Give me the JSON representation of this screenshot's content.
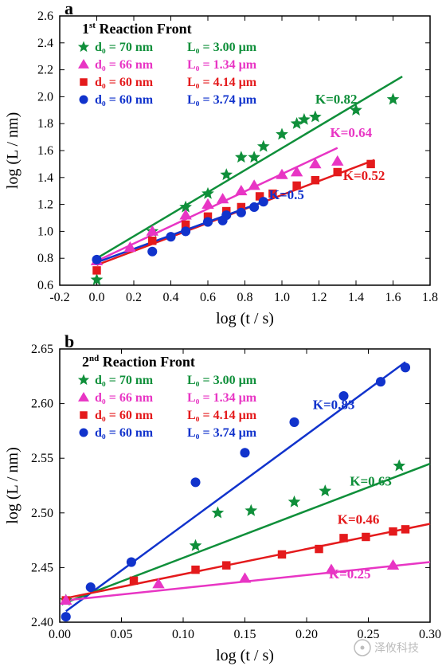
{
  "panel_a": {
    "letter": "a",
    "subtitle_prefix": "1",
    "subtitle_sup": "st",
    "subtitle_rest": " Reaction Front",
    "xlabel": "log (t / s)",
    "ylabel": "log (L / nm)",
    "xlim": [
      -0.2,
      1.8
    ],
    "ylim": [
      0.6,
      2.6
    ],
    "xticks": [
      -0.2,
      0.0,
      0.2,
      0.4,
      0.6,
      0.8,
      1.0,
      1.2,
      1.4,
      1.6,
      1.8
    ],
    "yticks": [
      0.6,
      0.8,
      1.0,
      1.2,
      1.4,
      1.6,
      1.8,
      2.0,
      2.2,
      2.4,
      2.6
    ],
    "legend": [
      {
        "marker": "star",
        "color": "#0f8f3a",
        "d0": "d₀ = 70 nm",
        "L0": "L₀ = 3.00 µm"
      },
      {
        "marker": "triangle",
        "color": "#e835c4",
        "d0": "d₀ = 66 nm",
        "L0": "L₀ = 1.34 µm"
      },
      {
        "marker": "square",
        "color": "#e41a1c",
        "d0": "d₀ = 60 nm",
        "L0": "L₀ = 4.14 µm"
      },
      {
        "marker": "circle",
        "color": "#1133cc",
        "d0": "d₀ = 60 nm",
        "L0": "L₀ = 3.74 µm"
      }
    ],
    "series": [
      {
        "name": "green",
        "color": "#0f8f3a",
        "marker": "star",
        "K": "K=0.82",
        "kpos": [
          1.18,
          1.95
        ],
        "points": [
          [
            0.0,
            0.64
          ],
          [
            0.3,
            1.0
          ],
          [
            0.48,
            1.18
          ],
          [
            0.6,
            1.28
          ],
          [
            0.7,
            1.42
          ],
          [
            0.78,
            1.55
          ],
          [
            0.85,
            1.55
          ],
          [
            0.9,
            1.63
          ],
          [
            1.0,
            1.72
          ],
          [
            1.08,
            1.8
          ],
          [
            1.12,
            1.83
          ],
          [
            1.18,
            1.85
          ],
          [
            1.4,
            1.9
          ],
          [
            1.6,
            1.98
          ]
        ],
        "fit": {
          "x1": 0.0,
          "y1": 0.8,
          "x2": 1.65,
          "y2": 2.15
        }
      },
      {
        "name": "magenta",
        "color": "#e835c4",
        "marker": "triangle",
        "K": "K=0.64",
        "kpos": [
          1.26,
          1.7
        ],
        "points": [
          [
            0.0,
            0.78
          ],
          [
            0.18,
            0.88
          ],
          [
            0.3,
            1.0
          ],
          [
            0.48,
            1.12
          ],
          [
            0.6,
            1.2
          ],
          [
            0.68,
            1.24
          ],
          [
            0.78,
            1.3
          ],
          [
            0.85,
            1.34
          ],
          [
            1.0,
            1.42
          ],
          [
            1.08,
            1.44
          ],
          [
            1.18,
            1.5
          ],
          [
            1.3,
            1.52
          ]
        ],
        "fit": {
          "x1": 0.0,
          "y1": 0.78,
          "x2": 1.3,
          "y2": 1.62
        }
      },
      {
        "name": "red",
        "color": "#e41a1c",
        "marker": "square",
        "K": "K=0.52",
        "kpos": [
          1.33,
          1.38
        ],
        "points": [
          [
            0.0,
            0.71
          ],
          [
            0.3,
            0.93
          ],
          [
            0.48,
            1.05
          ],
          [
            0.6,
            1.11
          ],
          [
            0.7,
            1.15
          ],
          [
            0.78,
            1.18
          ],
          [
            0.88,
            1.26
          ],
          [
            0.95,
            1.28
          ],
          [
            1.08,
            1.34
          ],
          [
            1.18,
            1.38
          ],
          [
            1.3,
            1.44
          ],
          [
            1.48,
            1.5
          ]
        ],
        "fit": {
          "x1": 0.0,
          "y1": 0.75,
          "x2": 1.5,
          "y2": 1.53
        }
      },
      {
        "name": "blue",
        "color": "#1133cc",
        "marker": "circle",
        "K": "K=0.5",
        "kpos": [
          0.93,
          1.24
        ],
        "points": [
          [
            0.0,
            0.79
          ],
          [
            0.3,
            0.85
          ],
          [
            0.4,
            0.96
          ],
          [
            0.48,
            1.0
          ],
          [
            0.6,
            1.07
          ],
          [
            0.68,
            1.08
          ],
          [
            0.7,
            1.12
          ],
          [
            0.78,
            1.14
          ],
          [
            0.85,
            1.18
          ],
          [
            0.9,
            1.22
          ]
        ],
        "fit": {
          "x1": 0.0,
          "y1": 0.77,
          "x2": 0.92,
          "y2": 1.23
        }
      }
    ]
  },
  "panel_b": {
    "letter": "b",
    "subtitle_prefix": "2",
    "subtitle_sup": "nd",
    "subtitle_rest": " Reaction Front",
    "xlabel": "log (t / s)",
    "ylabel": "log (L / nm)",
    "xlim": [
      0.0,
      0.3
    ],
    "ylim": [
      2.4,
      2.65
    ],
    "xticks": [
      0.0,
      0.05,
      0.1,
      0.15,
      0.2,
      0.25,
      0.3
    ],
    "yticks": [
      2.4,
      2.45,
      2.5,
      2.55,
      2.6,
      2.65
    ],
    "legend": [
      {
        "marker": "star",
        "color": "#0f8f3a",
        "d0": "d₀ = 70 nm",
        "L0": "L₀ = 3.00 µm"
      },
      {
        "marker": "triangle",
        "color": "#e835c4",
        "d0": "d₀ = 66 nm",
        "L0": "L₀ = 1.34 µm"
      },
      {
        "marker": "square",
        "color": "#e41a1c",
        "d0": "d₀ = 60 nm",
        "L0": "L₀ = 4.14 µm"
      },
      {
        "marker": "circle",
        "color": "#1133cc",
        "d0": "d₀ = 60 nm",
        "L0": "L₀ = 3.74 µm"
      }
    ],
    "series": [
      {
        "name": "blue",
        "color": "#1133cc",
        "marker": "circle",
        "K": "K=0.83",
        "kpos": [
          0.205,
          2.595
        ],
        "points": [
          [
            0.005,
            2.405
          ],
          [
            0.025,
            2.432
          ],
          [
            0.058,
            2.455
          ],
          [
            0.11,
            2.528
          ],
          [
            0.15,
            2.555
          ],
          [
            0.19,
            2.583
          ],
          [
            0.23,
            2.607
          ],
          [
            0.26,
            2.62
          ],
          [
            0.28,
            2.633
          ]
        ],
        "fit": {
          "x1": 0.005,
          "y1": 2.41,
          "x2": 0.28,
          "y2": 2.638
        }
      },
      {
        "name": "green",
        "color": "#0f8f3a",
        "marker": "star",
        "K": "K=0.63",
        "kpos": [
          0.235,
          2.525
        ],
        "points": [
          [
            0.005,
            2.42
          ],
          [
            0.11,
            2.47
          ],
          [
            0.128,
            2.5
          ],
          [
            0.155,
            2.502
          ],
          [
            0.19,
            2.51
          ],
          [
            0.215,
            2.52
          ],
          [
            0.275,
            2.543
          ]
        ],
        "fit": {
          "x1": 0.005,
          "y1": 2.418,
          "x2": 0.3,
          "y2": 2.545
        }
      },
      {
        "name": "red",
        "color": "#e41a1c",
        "marker": "square",
        "K": "K=0.46",
        "kpos": [
          0.225,
          2.49
        ],
        "points": [
          [
            0.005,
            2.42
          ],
          [
            0.06,
            2.438
          ],
          [
            0.11,
            2.448
          ],
          [
            0.135,
            2.452
          ],
          [
            0.18,
            2.462
          ],
          [
            0.21,
            2.467
          ],
          [
            0.23,
            2.477
          ],
          [
            0.248,
            2.478
          ],
          [
            0.27,
            2.483
          ],
          [
            0.28,
            2.485
          ]
        ],
        "fit": {
          "x1": 0.005,
          "y1": 2.422,
          "x2": 0.3,
          "y2": 2.49
        }
      },
      {
        "name": "magenta",
        "color": "#e835c4",
        "marker": "triangle",
        "K": "K=0.25",
        "kpos": [
          0.218,
          2.44
        ],
        "points": [
          [
            0.005,
            2.42
          ],
          [
            0.08,
            2.435
          ],
          [
            0.15,
            2.44
          ],
          [
            0.22,
            2.448
          ],
          [
            0.27,
            2.452
          ]
        ],
        "fit": {
          "x1": 0.005,
          "y1": 2.42,
          "x2": 0.3,
          "y2": 2.455
        }
      }
    ]
  },
  "watermark": "泽攸科技"
}
